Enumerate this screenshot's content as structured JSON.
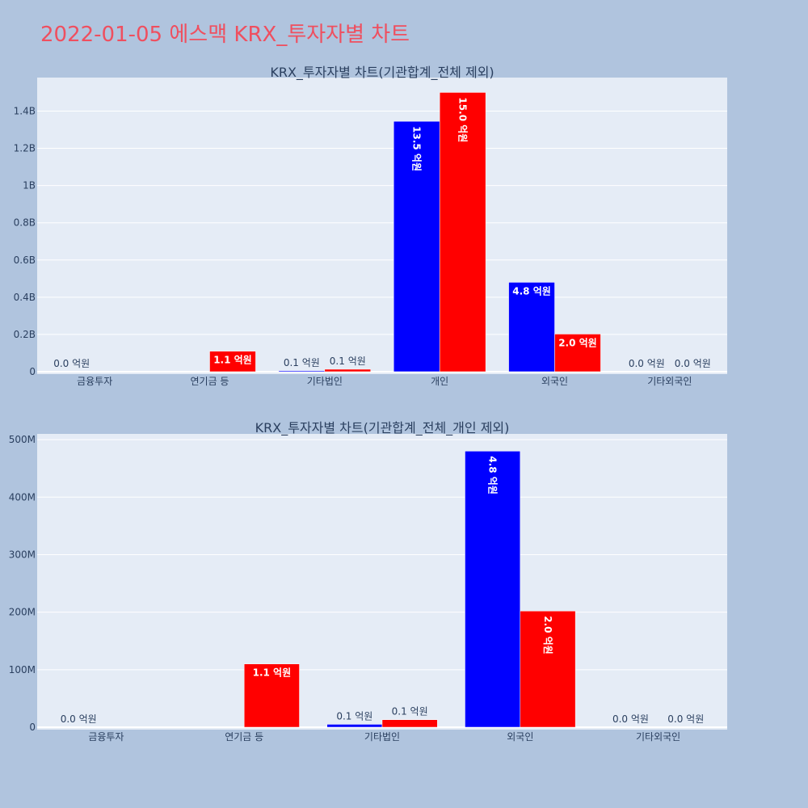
{
  "title": "2022-01-05 에스맥 KRX_투자자별 차트",
  "colors": {
    "buy": "#0000ff",
    "sell": "#ff0000",
    "plot_bg": "#e5ecf6",
    "page_bg": "#b0c4de",
    "title": "#ef4f5f"
  },
  "chart_data": [
    {
      "type": "bar",
      "title": "KRX_투자자별 차트(기관합계_전체 제외)",
      "categories": [
        "금융투자",
        "연기금 등",
        "기타법인",
        "개인",
        "외국인",
        "기타외국인"
      ],
      "series": [
        {
          "color": "#0000ff",
          "values": [
            0,
            0,
            5000000,
            1345000000,
            480000000,
            0
          ],
          "labels": [
            "0.0 억원",
            "",
            "0.1 억원",
            "13.5 억원",
            "4.8 억원",
            "0.0 억원"
          ]
        },
        {
          "color": "#ff0000",
          "values": [
            0,
            110000000,
            13000000,
            1500000000,
            202000000,
            0
          ],
          "labels": [
            "",
            "1.1 억원",
            "0.1 억원",
            "15.0 억원",
            "2.0 억원",
            "0.0 억원"
          ]
        }
      ],
      "ylim": [
        0,
        1580000000
      ],
      "yticks": [
        0,
        200000000,
        400000000,
        600000000,
        800000000,
        1000000000,
        1200000000,
        1400000000
      ],
      "ytick_labels": [
        "0",
        "0.2B",
        "0.4B",
        "0.6B",
        "0.8B",
        "1B",
        "1.2B",
        "1.4B"
      ],
      "grid": true
    },
    {
      "type": "bar",
      "title": "KRX_투자자별 차트(기관합계_전체_개인 제외)",
      "categories": [
        "금융투자",
        "연기금 등",
        "기타법인",
        "외국인",
        "기타외국인"
      ],
      "series": [
        {
          "color": "#0000ff",
          "values": [
            0,
            0,
            5000000,
            480000000,
            0
          ],
          "labels": [
            "0.0 억원",
            "",
            "0.1 억원",
            "4.8 억원",
            "0.0 억원"
          ]
        },
        {
          "color": "#ff0000",
          "values": [
            0,
            110000000,
            13000000,
            202000000,
            0
          ],
          "labels": [
            "",
            "1.1 억원",
            "0.1 억원",
            "2.0 억원",
            "0.0 억원"
          ]
        }
      ],
      "ylim": [
        0,
        510000000
      ],
      "yticks": [
        0,
        100000000,
        200000000,
        300000000,
        400000000,
        500000000
      ],
      "ytick_labels": [
        "0",
        "100M",
        "200M",
        "300M",
        "400M",
        "500M"
      ],
      "grid": true
    }
  ]
}
